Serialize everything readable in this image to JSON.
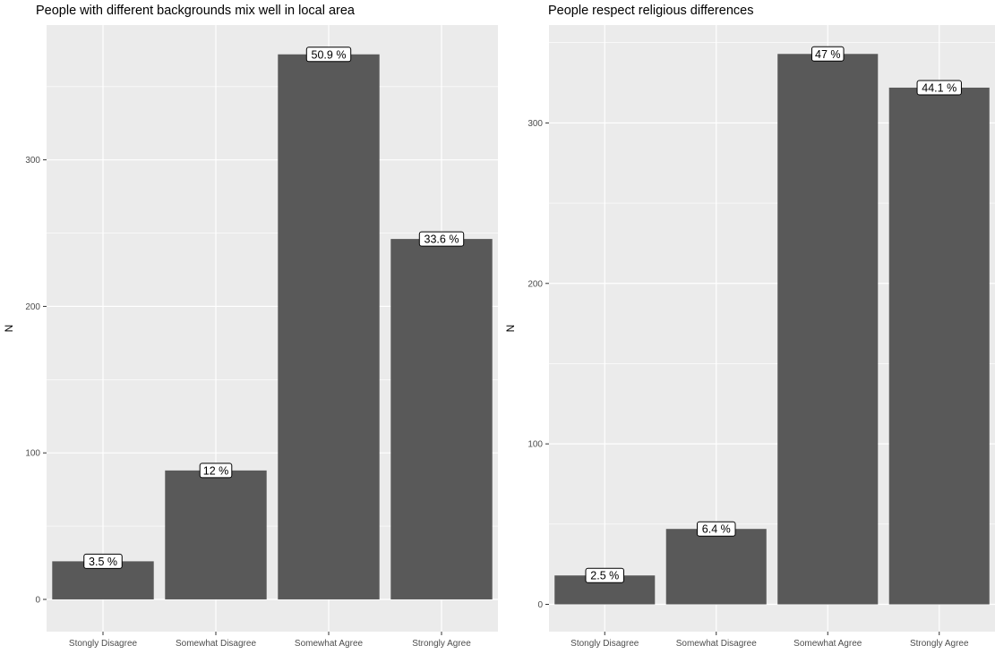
{
  "chart_data": [
    {
      "type": "bar",
      "title": "People with different backgrounds mix well in local area",
      "xlabel": "",
      "ylabel": "N",
      "categories": [
        "Stongly Disagree",
        "Somewhat Disagree",
        "Somewhat Agree",
        "Strongly Agree"
      ],
      "values": [
        26,
        88,
        372,
        246
      ],
      "labels": [
        "3.5 %",
        "12 %",
        "50.9 %",
        "33.6 %"
      ],
      "yticks": [
        0,
        100,
        200,
        300
      ],
      "ylim": [
        -22,
        392
      ],
      "grid": true,
      "colors": {
        "bar": "#595959",
        "panel": "#ebebeb",
        "grid": "#ffffff"
      }
    },
    {
      "type": "bar",
      "title": "People respect religious differences",
      "xlabel": "",
      "ylabel": "N",
      "categories": [
        "Stongly Disagree",
        "Somewhat Disagree",
        "Somewhat Agree",
        "Strongly Agree"
      ],
      "values": [
        18,
        47,
        343,
        322
      ],
      "labels": [
        "2.5 %",
        "6.4 %",
        "47 %",
        "44.1 %"
      ],
      "yticks": [
        0,
        100,
        200,
        300
      ],
      "ylim": [
        -17,
        361
      ],
      "grid": true,
      "colors": {
        "bar": "#595959",
        "panel": "#ebebeb",
        "grid": "#ffffff"
      }
    }
  ]
}
